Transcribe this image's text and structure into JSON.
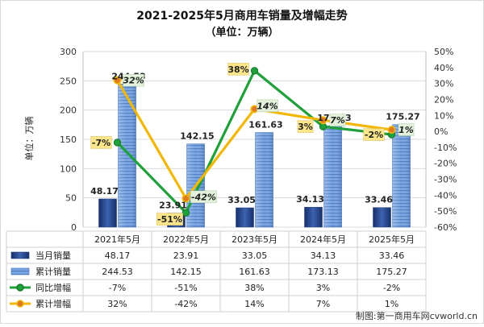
{
  "chart_data": {
    "type": "bar",
    "title": "2021-2025年5月商用车销量及增幅走势",
    "subtitle": "（单位：万辆）",
    "ylabel": "单位：万辆",
    "ylim": [
      0,
      300
    ],
    "y2lim": [
      -60,
      50
    ],
    "y_ticks": [
      "0",
      "50",
      "100",
      "150",
      "200",
      "250",
      "300"
    ],
    "y2_ticks": [
      "-60%",
      "-50%",
      "-40%",
      "-30%",
      "-20%",
      "-10%",
      "0%",
      "10%",
      "20%",
      "30%",
      "40%",
      "50%"
    ],
    "categories": [
      "2021年5月",
      "2022年5月",
      "2023年5月",
      "2024年5月",
      "2025年5月"
    ],
    "series": [
      {
        "name": "当月销量",
        "values": [
          48.17,
          23.91,
          33.05,
          34.13,
          33.46
        ],
        "labels": [
          "48.17",
          "23.91",
          "33.05",
          "34.13",
          "33.46"
        ],
        "color": "#2E4A8C"
      },
      {
        "name": "累计销量",
        "values": [
          244.53,
          142.15,
          161.63,
          173.13,
          175.27
        ],
        "labels": [
          "244.53",
          "142.15",
          "161.63",
          "173.13",
          "175.27"
        ],
        "color": "#5B8FD6"
      },
      {
        "name": "同比增幅",
        "values": [
          -7,
          -51,
          38,
          3,
          -2
        ],
        "labels": [
          "-7%",
          "-51%",
          "38%",
          "3%",
          "-2%"
        ],
        "color": "#1FA03A"
      },
      {
        "name": "累计增幅",
        "values": [
          32,
          -42,
          14,
          7,
          1
        ],
        "labels": [
          "32%",
          "-42%",
          "14%",
          "7%",
          "1%"
        ],
        "color": "#F2B705"
      }
    ],
    "grid": true,
    "legend": "table-below"
  },
  "watermark": "制图:第一商用车网cvworld.cn"
}
